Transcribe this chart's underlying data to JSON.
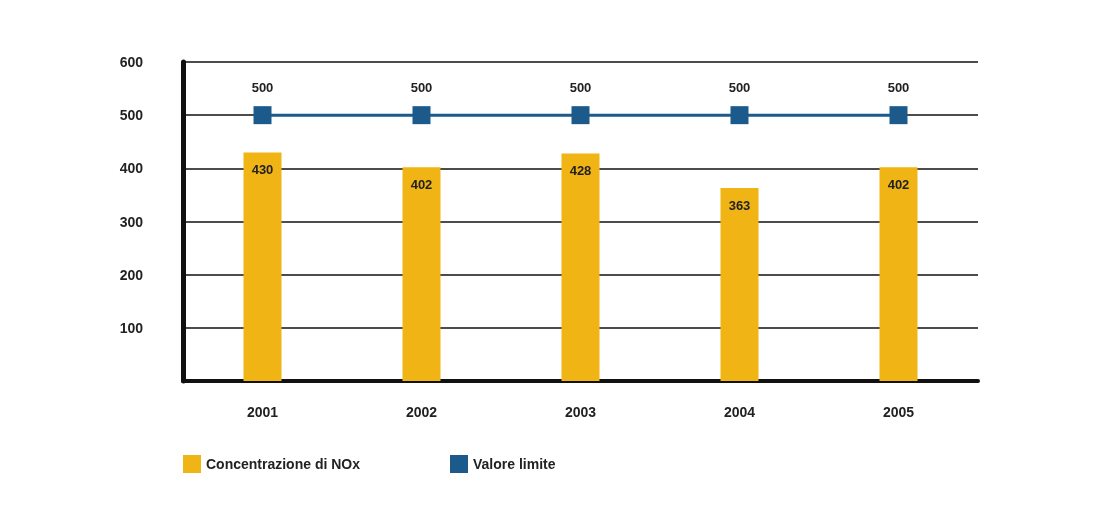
{
  "chart_data": {
    "type": "bar",
    "categories": [
      "2001",
      "2002",
      "2003",
      "2004",
      "2005"
    ],
    "series": [
      {
        "name": "Concentrazione di NOx",
        "color": "#f0b414",
        "values": [
          430,
          402,
          428,
          363,
          402
        ]
      },
      {
        "name": "Valore limite",
        "type": "line",
        "color": "#1b5a8a",
        "marker": "square",
        "values": [
          500,
          500,
          500,
          500,
          500
        ]
      }
    ],
    "ylim": [
      0,
      600
    ],
    "yticks": [
      100,
      200,
      300,
      400,
      500,
      600
    ],
    "grid": "y",
    "legend": "bottom left",
    "data_labels": true
  }
}
